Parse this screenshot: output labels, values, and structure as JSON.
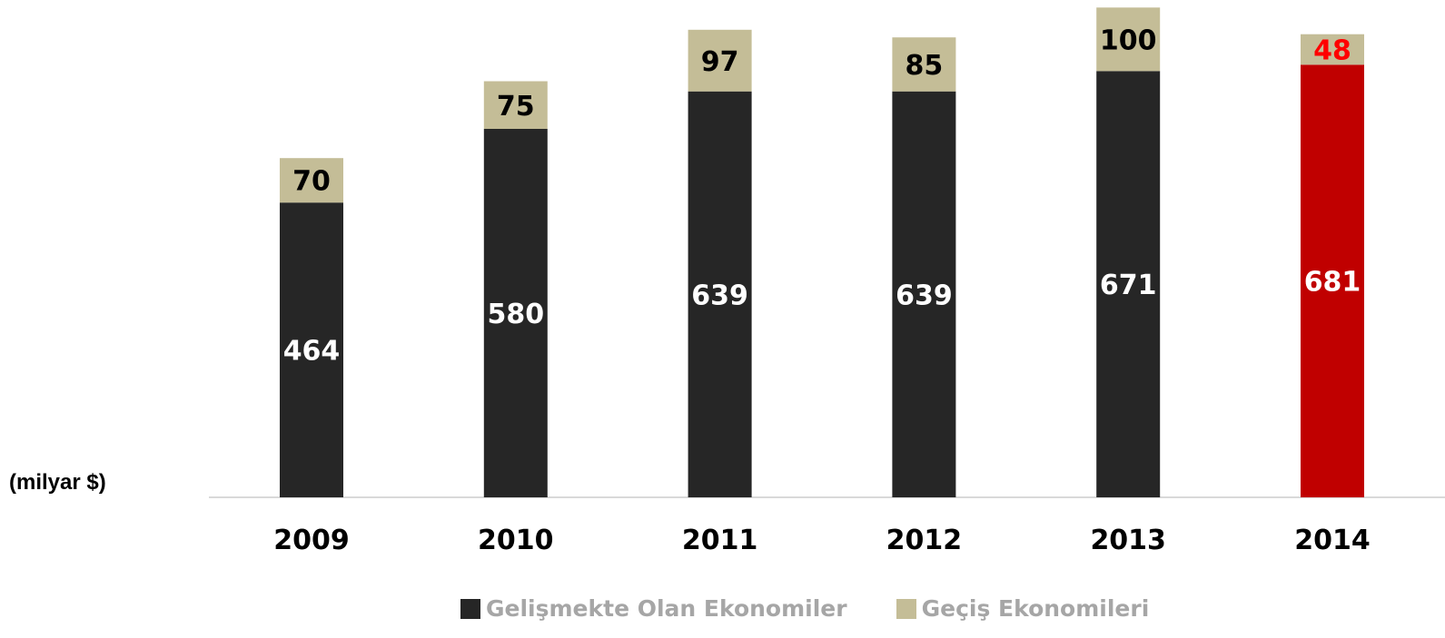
{
  "chart_data": {
    "type": "bar",
    "stacked": true,
    "unit_label": "(milyar $)",
    "categories": [
      "2009",
      "2010",
      "2011",
      "2012",
      "2013",
      "2014"
    ],
    "series": [
      {
        "name": "Gelişmekte Olan Ekonomiler",
        "values": [
          464,
          580,
          639,
          639,
          671,
          681
        ],
        "color": "#262626",
        "highlight_color": "#c00000"
      },
      {
        "name": "Geçiş Ekonomileri",
        "values": [
          70,
          75,
          97,
          85,
          100,
          48
        ],
        "color": "#c4bd97"
      }
    ],
    "highlight_category": "2014",
    "highlight_label_color": "#ff0000",
    "ylim": [
      0,
      800
    ],
    "grid": false,
    "legend_position": "bottom"
  }
}
